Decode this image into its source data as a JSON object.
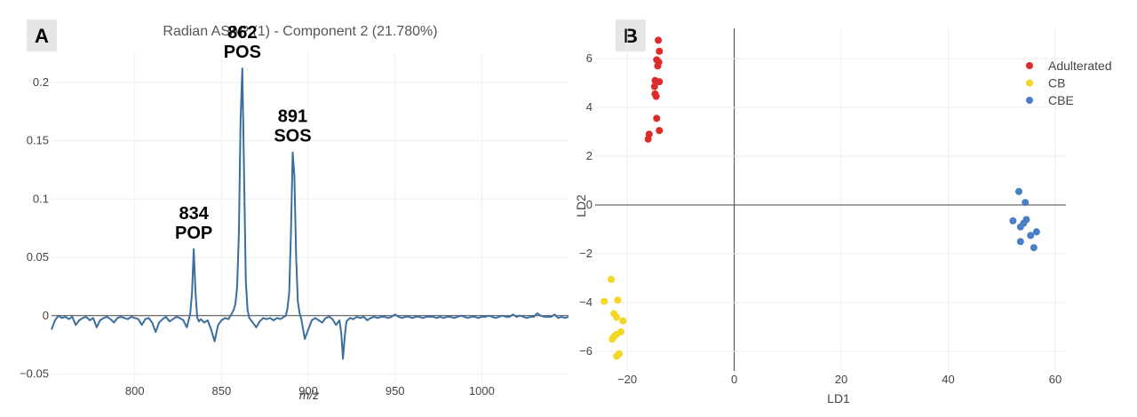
{
  "chart_data": [
    {
      "type": "line",
      "panel_label": "A",
      "title": "Radian ASAP (1) - Component 2 (21.780%)",
      "xlabel": "m/z",
      "ylabel": "",
      "xlim": [
        752,
        1050
      ],
      "ylim": [
        -0.058,
        0.225
      ],
      "xticks": [
        800,
        850,
        900,
        950,
        1000
      ],
      "yticks": [
        -0.05,
        0,
        0.05,
        0.1,
        0.15,
        0.2
      ],
      "ytick_labels": [
        "−0.05",
        "0",
        "0.05",
        "0.1",
        "0.15",
        "0.2"
      ],
      "grid": true,
      "line_color": "#3b6e9e",
      "annotations": [
        {
          "x": 834,
          "y": 0.057,
          "lines": [
            "834",
            "POP"
          ]
        },
        {
          "x": 862,
          "y": 0.212,
          "lines": [
            "862",
            "POS"
          ]
        },
        {
          "x": 891,
          "y": 0.14,
          "lines": [
            "891",
            "SOS"
          ]
        }
      ],
      "series": [
        {
          "x": [
            752,
            754,
            756,
            758,
            760,
            762,
            764,
            766,
            768,
            770,
            772,
            774,
            776,
            778,
            780,
            782,
            784,
            786,
            788,
            790,
            792,
            794,
            796,
            798,
            800,
            802,
            804,
            806,
            808,
            810,
            812,
            814,
            816,
            818,
            820,
            822,
            824,
            826,
            828,
            830,
            831,
            832,
            833,
            834,
            835,
            836,
            837,
            838,
            840,
            842,
            844,
            846,
            848,
            850,
            852,
            854,
            856,
            857,
            858,
            859,
            860,
            861,
            862,
            863,
            864,
            865,
            866,
            868,
            870,
            872,
            874,
            876,
            878,
            880,
            882,
            884,
            886,
            887,
            888,
            889,
            890,
            891,
            892,
            893,
            894,
            895,
            896,
            898,
            900,
            902,
            904,
            906,
            908,
            910,
            912,
            914,
            916,
            918,
            919,
            920,
            921,
            922,
            924,
            926,
            928,
            930,
            932,
            934,
            936,
            938,
            940,
            942,
            944,
            946,
            948,
            950,
            952,
            954,
            956,
            958,
            960,
            962,
            964,
            966,
            968,
            970,
            972,
            974,
            976,
            978,
            980,
            982,
            984,
            986,
            988,
            990,
            992,
            994,
            996,
            998,
            1000,
            1002,
            1004,
            1006,
            1008,
            1010,
            1012,
            1014,
            1016,
            1018,
            1020,
            1022,
            1024,
            1026,
            1028,
            1030,
            1032,
            1034,
            1036,
            1038,
            1040,
            1042,
            1044,
            1046,
            1048,
            1050
          ],
          "values": [
            -0.012,
            -0.004,
            0.0,
            -0.002,
            -0.001,
            -0.003,
            -0.001,
            -0.008,
            -0.004,
            -0.002,
            -0.001,
            -0.004,
            -0.002,
            -0.01,
            -0.004,
            -0.002,
            -0.001,
            -0.003,
            -0.006,
            -0.002,
            -0.001,
            -0.002,
            -0.003,
            -0.001,
            -0.002,
            -0.003,
            -0.008,
            -0.003,
            -0.002,
            -0.006,
            -0.014,
            -0.006,
            -0.003,
            -0.001,
            -0.005,
            -0.003,
            -0.001,
            -0.002,
            -0.004,
            -0.01,
            -0.004,
            0.002,
            0.02,
            0.057,
            0.02,
            -0.002,
            -0.005,
            -0.003,
            -0.006,
            -0.004,
            -0.012,
            -0.022,
            -0.008,
            -0.004,
            -0.002,
            -0.003,
            0.002,
            0.005,
            0.01,
            0.025,
            0.07,
            0.17,
            0.212,
            0.12,
            0.03,
            0.005,
            -0.002,
            -0.006,
            -0.01,
            -0.005,
            -0.002,
            -0.003,
            -0.002,
            -0.004,
            -0.002,
            -0.003,
            -0.001,
            0.0,
            0.006,
            0.02,
            0.07,
            0.14,
            0.12,
            0.05,
            0.012,
            0.002,
            -0.003,
            -0.02,
            -0.012,
            -0.004,
            -0.002,
            -0.004,
            -0.006,
            -0.002,
            -0.001,
            -0.003,
            -0.008,
            -0.004,
            -0.015,
            -0.037,
            -0.018,
            -0.005,
            -0.002,
            -0.003,
            -0.001,
            -0.002,
            -0.001,
            -0.004,
            -0.002,
            -0.001,
            -0.002,
            -0.001,
            -0.001,
            -0.002,
            -0.001,
            0.001,
            -0.001,
            -0.002,
            -0.001,
            -0.001,
            -0.002,
            -0.001,
            -0.001,
            -0.002,
            -0.001,
            -0.001,
            -0.001,
            -0.002,
            -0.001,
            -0.002,
            -0.001,
            -0.001,
            -0.002,
            -0.001,
            0.0,
            -0.001,
            -0.002,
            -0.001,
            -0.001,
            -0.002,
            -0.001,
            -0.001,
            0.0,
            -0.001,
            -0.002,
            -0.001,
            0.0,
            -0.001,
            -0.001,
            0.001,
            -0.001,
            0.0,
            -0.001,
            -0.002,
            -0.001,
            -0.001,
            0.002,
            0.0,
            -0.001,
            -0.001,
            -0.001,
            0.001,
            -0.002,
            -0.001,
            -0.002,
            -0.001
          ]
        }
      ]
    },
    {
      "type": "scatter",
      "panel_label": "B",
      "title": "",
      "xlabel": "LD1",
      "ylabel": "LD2",
      "xlim": [
        -26,
        62
      ],
      "ylim": [
        -6.8,
        7.6
      ],
      "xticks": [
        -20,
        0,
        20,
        40,
        60
      ],
      "xtick_labels": [
        "−20",
        "0",
        "20",
        "40",
        "60"
      ],
      "yticks": [
        -6,
        -4,
        -2,
        0,
        2,
        4,
        6
      ],
      "ytick_labels": [
        "−6",
        "−4",
        "−2",
        "0",
        "2",
        "4",
        "6"
      ],
      "grid": true,
      "legend_position": "top-right",
      "series": [
        {
          "name": "Adulterated",
          "color": "#dd2a2a",
          "points": [
            [
              -14.2,
              6.75
            ],
            [
              -14.0,
              6.3
            ],
            [
              -14.5,
              5.95
            ],
            [
              -14.1,
              5.85
            ],
            [
              -14.3,
              5.7
            ],
            [
              -14.8,
              5.1
            ],
            [
              -14.0,
              5.05
            ],
            [
              -14.9,
              4.85
            ],
            [
              -14.8,
              4.55
            ],
            [
              -14.6,
              4.45
            ],
            [
              -14.5,
              3.55
            ],
            [
              -14.0,
              3.05
            ],
            [
              -15.9,
              2.9
            ],
            [
              -16.1,
              2.7
            ]
          ]
        },
        {
          "name": "CB",
          "color": "#f2d724",
          "points": [
            [
              -23.0,
              -3.05
            ],
            [
              -21.8,
              -3.9
            ],
            [
              -24.3,
              -3.95
            ],
            [
              -22.5,
              -4.45
            ],
            [
              -22.0,
              -4.6
            ],
            [
              -20.8,
              -4.75
            ],
            [
              -21.2,
              -5.2
            ],
            [
              -22.0,
              -5.3
            ],
            [
              -22.5,
              -5.4
            ],
            [
              -22.8,
              -5.5
            ],
            [
              -21.5,
              -6.1
            ],
            [
              -22.0,
              -6.2
            ]
          ]
        },
        {
          "name": "CBE",
          "color": "#4b7fc4",
          "points": [
            [
              53.2,
              0.55
            ],
            [
              54.4,
              0.1
            ],
            [
              52.1,
              -0.65
            ],
            [
              54.6,
              -0.6
            ],
            [
              54.1,
              -0.75
            ],
            [
              53.5,
              -0.9
            ],
            [
              56.5,
              -1.1
            ],
            [
              55.4,
              -1.25
            ],
            [
              53.5,
              -1.5
            ],
            [
              56.0,
              -1.75
            ]
          ]
        }
      ]
    }
  ]
}
